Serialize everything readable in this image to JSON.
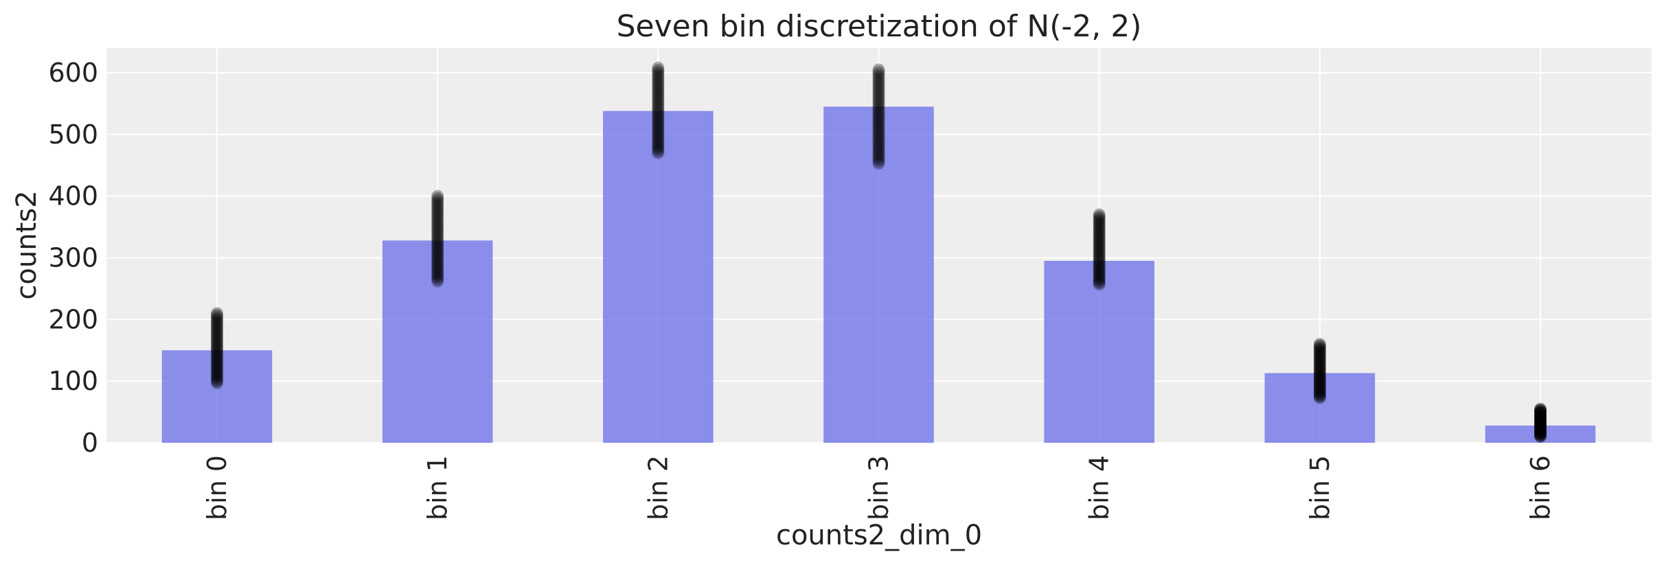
{
  "chart_data": {
    "type": "bar",
    "title": "Seven bin discretization of N(-2, 2)",
    "xlabel": "counts2_dim_0",
    "ylabel": "counts2",
    "categories": [
      "bin 0",
      "bin 1",
      "bin 2",
      "bin 3",
      "bin 4",
      "bin 5",
      "bin 6"
    ],
    "values": [
      150,
      328,
      538,
      545,
      295,
      113,
      28
    ],
    "ylim": [
      0,
      640
    ],
    "yticks": [
      0,
      100,
      200,
      300,
      400,
      500,
      600
    ],
    "grid": true,
    "overlay": {
      "type": "scatter",
      "point_ranges": [
        [
          97,
          210
        ],
        [
          262,
          400
        ],
        [
          470,
          608
        ],
        [
          453,
          605
        ],
        [
          257,
          370
        ],
        [
          73,
          160
        ],
        [
          10,
          55
        ]
      ]
    },
    "colors": {
      "bar": "#6e72e8",
      "points": "#000000",
      "plot_background": "#eeeeee",
      "grid": "#ffffff"
    }
  }
}
